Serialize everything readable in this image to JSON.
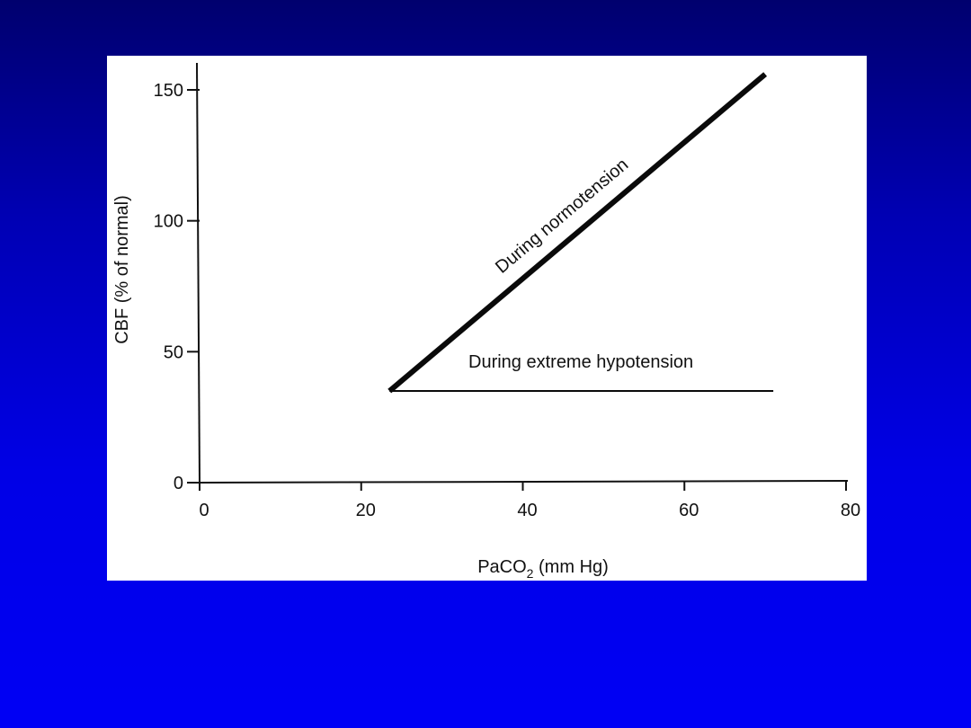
{
  "slide": {
    "background_top": "#00006e",
    "background_bottom": "#0000f5"
  },
  "chart_data": {
    "type": "line",
    "xlabel_main": "PaCO",
    "xlabel_sub": "2",
    "xlabel_rest": " (mm Hg)",
    "ylabel": "CBF (% of normal)",
    "xlim": [
      0,
      80
    ],
    "ylim": [
      0,
      150
    ],
    "x_ticks": [
      0,
      20,
      40,
      60,
      80
    ],
    "y_ticks": [
      0,
      50,
      100,
      150
    ],
    "grid": false,
    "legend": "none",
    "series": [
      {
        "name": "During normotension",
        "x": [
          23.5,
          70
        ],
        "y": [
          35,
          156
        ],
        "stroke_color": "#0a0a0a",
        "weight": "heavy"
      },
      {
        "name": "During extreme hypotension",
        "x": [
          23.5,
          71
        ],
        "y": [
          35,
          35
        ],
        "stroke_color": "#0a0a0a",
        "weight": "thin"
      }
    ]
  }
}
